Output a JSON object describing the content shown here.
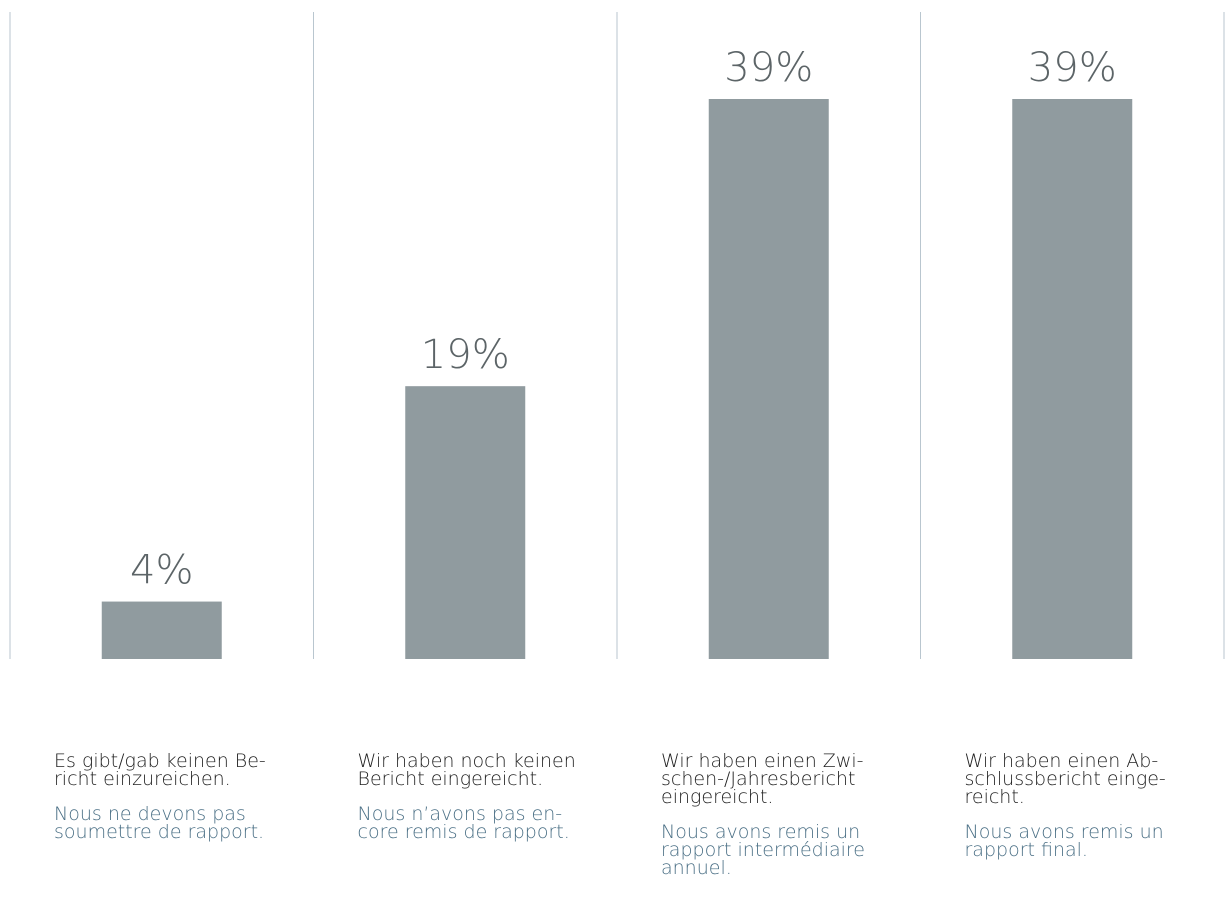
{
  "chart_data": {
    "type": "bar",
    "ylim": [
      0,
      39
    ],
    "colors": {
      "bar": "#909b9f",
      "divider": "#b9c6cf",
      "value_text": "#5c6467",
      "german_text": "#1f1f1f",
      "french_text": "#4a6f85"
    },
    "categories": [
      {
        "value": 4,
        "value_label": "4%",
        "de": "Es gibt/gab keinen Be-\nricht einzureichen.",
        "fr": "Nous ne devons pas\nsoumettre de rapport."
      },
      {
        "value": 19,
        "value_label": "19%",
        "de": "Wir haben noch keinen\nBericht eingereicht.",
        "fr": "Nous n’avons pas en-\ncore remis de rapport."
      },
      {
        "value": 39,
        "value_label": "39%",
        "de": "Wir haben einen Zwi-\nschen-/Jahresbericht\neingereicht.",
        "fr": "Nous avons remis un\nrapport intermédiaire\nannuel."
      },
      {
        "value": 39,
        "value_label": "39%",
        "de": "Wir haben einen Ab-\nschlussbericht einge-\nreicht.",
        "fr": "Nous avons remis un\nrapport final."
      }
    ]
  }
}
